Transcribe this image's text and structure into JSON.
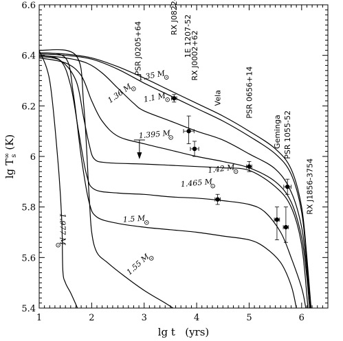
{
  "chart_data": {
    "type": "line",
    "xlabel": "lg t   (yrs)",
    "ylabel": "lg T",
    "ylabel_sup": "∞",
    "ylabel_sub": "s",
    "ylabel_unit": "(K)",
    "xlim": [
      1,
      6.5
    ],
    "ylim": [
      5.4,
      6.6
    ],
    "xticks": [
      {
        "value": 1,
        "label": "1"
      },
      {
        "value": 2,
        "label": "2"
      },
      {
        "value": 3,
        "label": "3"
      },
      {
        "value": 4,
        "label": "4"
      },
      {
        "value": 5,
        "label": "5"
      },
      {
        "value": 6,
        "label": "6"
      }
    ],
    "yticks": [
      {
        "value": 5.4,
        "label": "5.4"
      },
      {
        "value": 5.6,
        "label": "5.6"
      },
      {
        "value": 5.8,
        "label": "5.8"
      },
      {
        "value": 6.0,
        "label": "6"
      },
      {
        "value": 6.2,
        "label": "6.2"
      },
      {
        "value": 6.4,
        "label": "6.4"
      },
      {
        "value": 6.6,
        "label": "6.6"
      }
    ],
    "series": [
      {
        "name": "1.35 M⊙",
        "points": [
          [
            1,
            6.41
          ],
          [
            1.5,
            6.405
          ],
          [
            2,
            6.39
          ],
          [
            2.5,
            6.355
          ],
          [
            3,
            6.31
          ],
          [
            3.5,
            6.26
          ],
          [
            4,
            6.21
          ],
          [
            4.5,
            6.16
          ],
          [
            5,
            6.1
          ],
          [
            5.5,
            6.03
          ],
          [
            5.8,
            5.95
          ],
          [
            6,
            5.8
          ],
          [
            6.1,
            5.6
          ],
          [
            6.18,
            5.4
          ]
        ]
      },
      {
        "name": "1.1 M⊙",
        "points": [
          [
            1,
            6.405
          ],
          [
            1.5,
            6.4
          ],
          [
            2,
            6.385
          ],
          [
            2.5,
            6.345
          ],
          [
            3,
            6.29
          ],
          [
            3.5,
            6.24
          ],
          [
            4,
            6.19
          ],
          [
            4.5,
            6.14
          ],
          [
            5,
            6.08
          ],
          [
            5.5,
            6.01
          ],
          [
            5.8,
            5.93
          ],
          [
            6,
            5.78
          ],
          [
            6.1,
            5.58
          ],
          [
            6.17,
            5.4
          ]
        ]
      },
      {
        "name": "1.36 M⊙",
        "points": [
          [
            1,
            6.4
          ],
          [
            1.5,
            6.39
          ],
          [
            1.9,
            6.37
          ],
          [
            2.2,
            6.33
          ],
          [
            2.5,
            6.27
          ],
          [
            2.8,
            6.21
          ],
          [
            3,
            6.18
          ],
          [
            3.5,
            6.14
          ],
          [
            4,
            6.1
          ],
          [
            4.5,
            6.065
          ],
          [
            5,
            6.01
          ],
          [
            5.5,
            5.95
          ],
          [
            5.8,
            5.86
          ],
          [
            6,
            5.72
          ],
          [
            6.1,
            5.55
          ],
          [
            6.15,
            5.4
          ]
        ]
      },
      {
        "name": "1.395 M⊙",
        "points": [
          [
            1,
            6.39
          ],
          [
            1.5,
            6.37
          ],
          [
            1.8,
            6.32
          ],
          [
            2,
            6.22
          ],
          [
            2.2,
            6.14
          ],
          [
            2.5,
            6.08
          ],
          [
            3,
            6.05
          ],
          [
            3.5,
            6.025
          ],
          [
            4,
            6.0
          ],
          [
            4.5,
            5.98
          ],
          [
            5,
            5.955
          ],
          [
            5.5,
            5.9
          ],
          [
            5.8,
            5.82
          ],
          [
            6,
            5.68
          ],
          [
            6.1,
            5.52
          ],
          [
            6.15,
            5.4
          ]
        ]
      },
      {
        "name": "1.42 M⊙",
        "points": [
          [
            1,
            6.395
          ],
          [
            1.4,
            6.38
          ],
          [
            1.7,
            6.3
          ],
          [
            1.85,
            6.15
          ],
          [
            1.95,
            6.05
          ],
          [
            2.05,
            5.99
          ],
          [
            2.3,
            5.975
          ],
          [
            3,
            5.97
          ],
          [
            3.5,
            5.965
          ],
          [
            4,
            5.96
          ],
          [
            4.5,
            5.955
          ],
          [
            5,
            5.945
          ],
          [
            5.5,
            5.88
          ],
          [
            5.8,
            5.8
          ],
          [
            6,
            5.65
          ],
          [
            6.12,
            5.4
          ]
        ]
      },
      {
        "name": "1.465 M⊙",
        "points": [
          [
            1,
            6.4
          ],
          [
            1.4,
            6.38
          ],
          [
            1.6,
            6.28
          ],
          [
            1.75,
            6.1
          ],
          [
            1.9,
            5.93
          ],
          [
            2.05,
            5.87
          ],
          [
            2.5,
            5.855
          ],
          [
            3,
            5.85
          ],
          [
            3.5,
            5.84
          ],
          [
            4,
            5.835
          ],
          [
            4.5,
            5.825
          ],
          [
            5,
            5.81
          ],
          [
            5.3,
            5.78
          ],
          [
            5.6,
            5.7
          ],
          [
            5.8,
            5.6
          ],
          [
            6,
            5.48
          ],
          [
            6.08,
            5.4
          ]
        ]
      },
      {
        "name": "1.5 M⊙",
        "points": [
          [
            1,
            6.41
          ],
          [
            1.5,
            6.39
          ],
          [
            1.65,
            6.25
          ],
          [
            1.8,
            6.0
          ],
          [
            1.95,
            5.82
          ],
          [
            2.1,
            5.76
          ],
          [
            2.5,
            5.735
          ],
          [
            3,
            5.72
          ],
          [
            3.5,
            5.71
          ],
          [
            4,
            5.7
          ],
          [
            4.5,
            5.685
          ],
          [
            5,
            5.67
          ],
          [
            5.3,
            5.64
          ],
          [
            5.6,
            5.58
          ],
          [
            5.8,
            5.49
          ],
          [
            5.9,
            5.4
          ]
        ]
      },
      {
        "name": "1.55 M⊙",
        "points": [
          [
            1,
            6.42
          ],
          [
            1.7,
            6.4
          ],
          [
            1.85,
            6.2
          ],
          [
            1.95,
            5.85
          ],
          [
            2.0,
            5.7
          ],
          [
            2.1,
            5.62
          ],
          [
            2.3,
            5.58
          ],
          [
            2.6,
            5.53
          ],
          [
            3,
            5.47
          ],
          [
            3.4,
            5.42
          ],
          [
            3.55,
            5.4
          ]
        ]
      },
      {
        "name": "1.977 M⊙",
        "points": [
          [
            1,
            6.42
          ],
          [
            1.2,
            6.3
          ],
          [
            1.35,
            6.0
          ],
          [
            1.43,
            5.75
          ],
          [
            1.45,
            5.55
          ],
          [
            1.5,
            5.5
          ],
          [
            1.6,
            5.46
          ],
          [
            1.73,
            5.4
          ]
        ]
      }
    ],
    "series_labels": [
      {
        "text": "1.35 M",
        "x": 2.9,
        "y": 6.3,
        "angle": -11
      },
      {
        "text": "1.1 M",
        "x": 3.0,
        "y": 6.215,
        "angle": -11
      },
      {
        "text": "1.36 M",
        "x": 2.35,
        "y": 6.21,
        "angle": -36
      },
      {
        "text": "1.395 M",
        "x": 2.9,
        "y": 6.072,
        "angle": -5
      },
      {
        "text": "1.42 M",
        "x": 4.22,
        "y": 5.935,
        "angle": -7
      },
      {
        "text": "1.465 M",
        "x": 3.7,
        "y": 5.88,
        "angle": -5
      },
      {
        "text": "1.5 M",
        "x": 2.6,
        "y": 5.74,
        "angle": -4
      },
      {
        "text": "1.55 M",
        "x": 2.72,
        "y": 5.53,
        "angle": -42
      },
      {
        "text": "1.977 M",
        "x": 1.4,
        "y": 5.775,
        "angle": 90
      }
    ],
    "observations": [
      {
        "name": "PSR J0205+64",
        "x": 2.91,
        "y": 6.03,
        "xerr": 0,
        "yerr_lo": 0.0,
        "yerr_hi": 0.0,
        "upper_limit": true,
        "label_x": 2.88,
        "label_y": 6.32
      },
      {
        "name": "RX J0822-43",
        "x": 3.57,
        "y": 6.23,
        "xerr": 0.05,
        "yerr_lo": 0.015,
        "yerr_hi": 0.015,
        "upper_limit": false,
        "label_x": 3.57,
        "label_y": 6.48
      },
      {
        "name": "1E 1207-52",
        "x": 3.85,
        "y": 6.1,
        "xerr": 0.1,
        "yerr_lo": 0.05,
        "yerr_hi": 0.06,
        "upper_limit": false,
        "label_x": 3.83,
        "label_y": 6.39
      },
      {
        "name": "RX J0002+62",
        "x": 3.96,
        "y": 6.03,
        "xerr": 0.08,
        "yerr_lo": 0.03,
        "yerr_hi": 0.03,
        "upper_limit": false,
        "label_x": 3.96,
        "label_y": 6.3
      },
      {
        "name": "Vela",
        "x": 4.4,
        "y": 5.83,
        "xerr": 0.05,
        "yerr_lo": 0.02,
        "yerr_hi": 0.02,
        "upper_limit": false,
        "label_x": 4.4,
        "label_y": 6.2
      },
      {
        "name": "PSR 0656+14",
        "x": 5.0,
        "y": 5.96,
        "xerr": 0.05,
        "yerr_lo": 0.02,
        "yerr_hi": 0.02,
        "upper_limit": false,
        "label_x": 5.0,
        "label_y": 6.15
      },
      {
        "name": "Geminga",
        "x": 5.53,
        "y": 5.75,
        "xerr": 0.05,
        "yerr_lo": 0.08,
        "yerr_hi": 0.05,
        "upper_limit": false,
        "label_x": 5.53,
        "label_y": 6.03
      },
      {
        "name": "PSR 1055-52",
        "x": 5.73,
        "y": 5.88,
        "xerr": 0.07,
        "yerr_lo": 0.03,
        "yerr_hi": 0.03,
        "upper_limit": false,
        "label_x": 5.73,
        "label_y": 5.99
      },
      {
        "name": "RX J1856-3754",
        "x": 5.7,
        "y": 5.72,
        "xerr": 0.05,
        "yerr_lo": 0.06,
        "yerr_hi": 0.08,
        "upper_limit": false,
        "label_x": 6.15,
        "label_y": 5.77
      }
    ],
    "grid": false,
    "legend": "none"
  }
}
